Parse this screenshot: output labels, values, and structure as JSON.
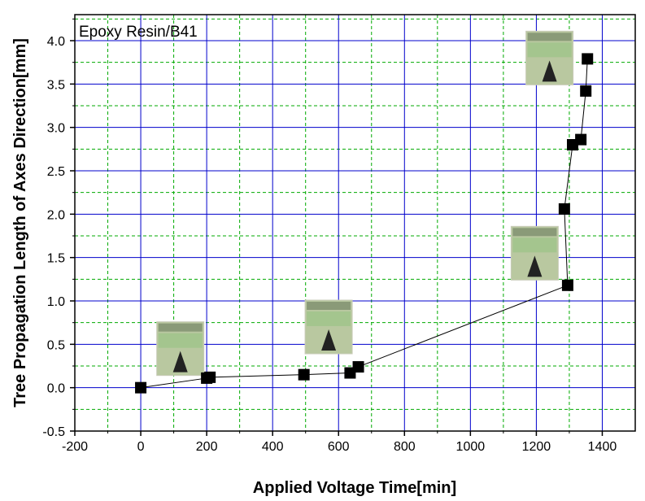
{
  "chart_data": {
    "type": "scatter",
    "title": "Epoxy Resin/B41",
    "xlabel": "Applied Voltage Time[min]",
    "ylabel": "Tree Propagation Length of Axes Direction[mm]",
    "xlim": [
      -200,
      1500
    ],
    "ylim": [
      -0.5,
      4.3
    ],
    "xticks": [
      -200,
      0,
      200,
      400,
      600,
      800,
      1000,
      1200,
      1400
    ],
    "xtick_labels": [
      "-200",
      "0",
      "200",
      "400",
      "600",
      "800",
      "1000",
      "1200",
      "1400"
    ],
    "yticks": [
      -0.5,
      0.0,
      0.5,
      1.0,
      1.5,
      2.0,
      2.5,
      3.0,
      3.5,
      4.0
    ],
    "ytick_labels": [
      "-0.5",
      "0.0",
      "0.5",
      "1.0",
      "1.5",
      "2.0",
      "2.5",
      "3.0",
      "3.5",
      "4.0"
    ],
    "major_grid": true,
    "minor_grid": true,
    "colors": {
      "major_grid": "#0000cc",
      "minor_grid": "#00aa00",
      "marker": "#000000",
      "line": "#000000"
    },
    "series": [
      {
        "x": [
          0,
          200,
          210,
          495,
          635,
          660,
          1295,
          1285,
          1310,
          1335,
          1350,
          1355
        ],
        "y": [
          0.0,
          0.11,
          0.12,
          0.15,
          0.17,
          0.24,
          1.18,
          2.06,
          2.8,
          2.86,
          3.42,
          3.79
        ],
        "marker": "square",
        "connected": true
      }
    ],
    "inset_images": [
      {
        "x": 120,
        "y": 0.45
      },
      {
        "x": 570,
        "y": 0.7
      },
      {
        "x": 1195,
        "y": 1.55
      },
      {
        "x": 1240,
        "y": 3.8
      }
    ]
  }
}
